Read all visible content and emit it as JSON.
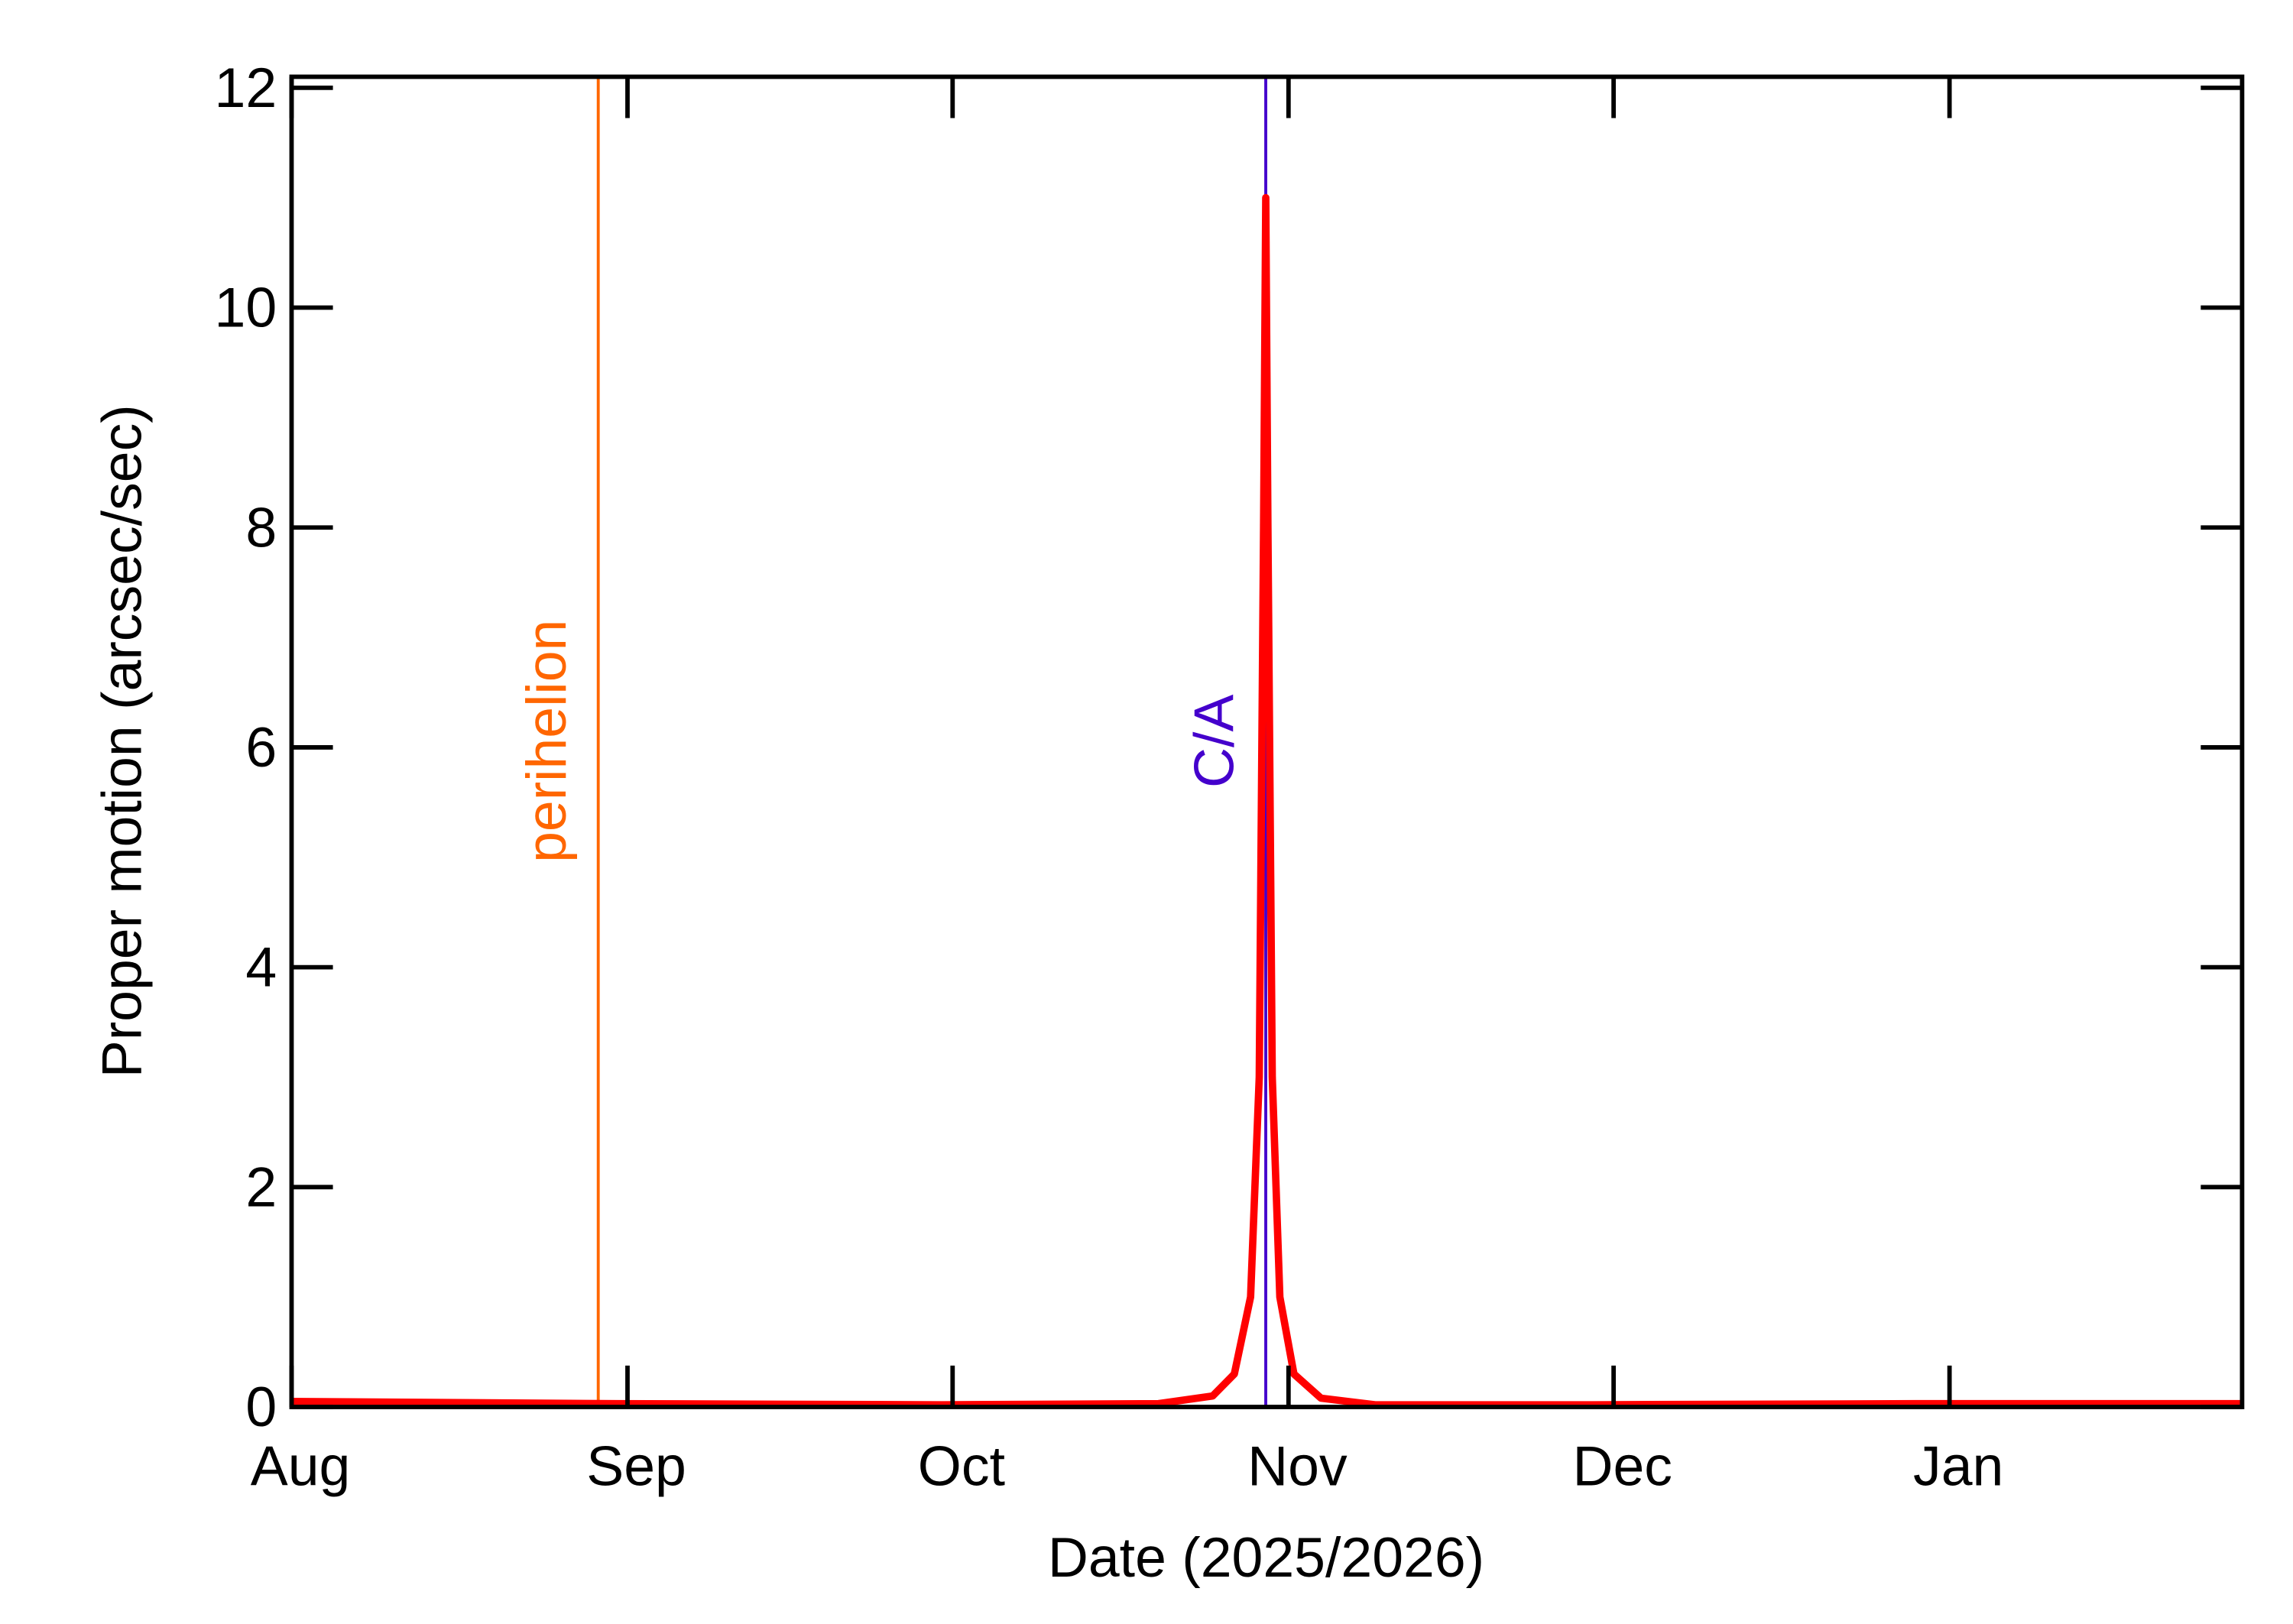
{
  "chart_data": {
    "type": "line",
    "x_label": "Date (2025/2026)",
    "y_label": "Proper motion (arcsec/sec)",
    "x": [
      0,
      30,
      60,
      80,
      85,
      87,
      88.5,
      89.3,
      89.7,
      89.9,
      90.1,
      90.5,
      91.2,
      92.5,
      95,
      100,
      120,
      150,
      180
    ],
    "series": [
      {
        "name": "Proper motion",
        "color": "#ff0000",
        "values": [
          0.05,
          0.03,
          0.02,
          0.03,
          0.1,
          0.3,
          1.0,
          3,
          8,
          11,
          8,
          3,
          1.0,
          0.3,
          0.08,
          0.02,
          0.02,
          0.03,
          0.03
        ]
      }
    ],
    "xlim": [
      0,
      180
    ],
    "xticks": [
      {
        "value": 0,
        "label": "Aug"
      },
      {
        "value": 31,
        "label": "Sep"
      },
      {
        "value": 61,
        "label": "Oct"
      },
      {
        "value": 92,
        "label": "Nov"
      },
      {
        "value": 122,
        "label": "Dec"
      },
      {
        "value": 153,
        "label": "Jan"
      }
    ],
    "ylim": [
      0,
      12.1
    ],
    "yticks": [
      0,
      2,
      4,
      6,
      8,
      10,
      12
    ],
    "markers": [
      {
        "x": 28.3,
        "label": "perihelion",
        "color": "#ff6600"
      },
      {
        "x": 89.9,
        "label": "C/A",
        "color": "#4400cc"
      }
    ]
  }
}
